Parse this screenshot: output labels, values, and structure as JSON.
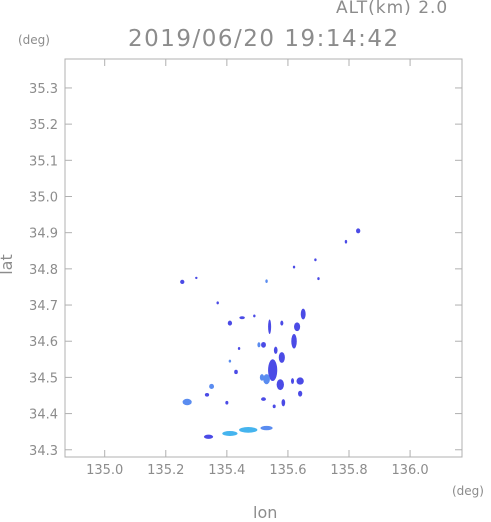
{
  "header": {
    "altitude_label": "ALT(km) 2.0",
    "datetime": "2019/06/20 19:14:42"
  },
  "chart_data": {
    "type": "heatmap",
    "title": "2019/06/20 19:14:42",
    "subtitle": "ALT(km) 2.0",
    "xlabel": "lon",
    "ylabel": "lat",
    "x_unit": "(deg)",
    "y_unit": "(deg)",
    "xlim": [
      134.87,
      136.17
    ],
    "ylim": [
      34.28,
      35.38
    ],
    "x_ticks": [
      135.0,
      135.2,
      135.4,
      135.6,
      135.8,
      136.0
    ],
    "x_tick_labels": [
      "135.0",
      "135.2",
      "135.4",
      "135.6",
      "135.8",
      "136.0"
    ],
    "y_ticks": [
      34.3,
      34.4,
      34.5,
      34.6,
      34.7,
      34.8,
      34.9,
      35.0,
      35.1,
      35.2,
      35.3
    ],
    "y_tick_labels": [
      "34.3",
      "34.4",
      "34.5",
      "34.6",
      "34.7",
      "34.8",
      "34.9",
      "35.0",
      "35.1",
      "35.2",
      "35.3"
    ],
    "grid": false,
    "colors": {
      "strong": "#4b4be6",
      "medium": "#5a8cf0",
      "light": "#45b4ee"
    },
    "echoes": [
      {
        "lon": 135.254,
        "lat": 34.764,
        "w": 0.014,
        "h": 0.012,
        "level": "strong"
      },
      {
        "lon": 135.3,
        "lat": 34.775,
        "w": 0.008,
        "h": 0.006,
        "level": "strong"
      },
      {
        "lon": 135.37,
        "lat": 34.706,
        "w": 0.008,
        "h": 0.008,
        "level": "strong"
      },
      {
        "lon": 135.53,
        "lat": 34.766,
        "w": 0.008,
        "h": 0.01,
        "level": "medium"
      },
      {
        "lon": 135.62,
        "lat": 34.805,
        "w": 0.006,
        "h": 0.008,
        "level": "strong"
      },
      {
        "lon": 135.69,
        "lat": 34.825,
        "w": 0.005,
        "h": 0.008,
        "level": "strong"
      },
      {
        "lon": 135.7,
        "lat": 34.773,
        "w": 0.005,
        "h": 0.008,
        "level": "strong"
      },
      {
        "lon": 135.79,
        "lat": 34.875,
        "w": 0.008,
        "h": 0.01,
        "level": "strong"
      },
      {
        "lon": 135.83,
        "lat": 34.905,
        "w": 0.014,
        "h": 0.014,
        "level": "strong"
      },
      {
        "lon": 135.45,
        "lat": 34.665,
        "w": 0.018,
        "h": 0.008,
        "level": "strong"
      },
      {
        "lon": 135.41,
        "lat": 34.65,
        "w": 0.014,
        "h": 0.014,
        "level": "strong"
      },
      {
        "lon": 135.49,
        "lat": 34.67,
        "w": 0.008,
        "h": 0.008,
        "level": "strong"
      },
      {
        "lon": 135.54,
        "lat": 34.64,
        "w": 0.01,
        "h": 0.04,
        "level": "strong"
      },
      {
        "lon": 135.58,
        "lat": 34.65,
        "w": 0.01,
        "h": 0.014,
        "level": "strong"
      },
      {
        "lon": 135.65,
        "lat": 34.675,
        "w": 0.016,
        "h": 0.03,
        "level": "strong"
      },
      {
        "lon": 135.63,
        "lat": 34.64,
        "w": 0.02,
        "h": 0.024,
        "level": "strong"
      },
      {
        "lon": 135.62,
        "lat": 34.6,
        "w": 0.018,
        "h": 0.04,
        "level": "strong"
      },
      {
        "lon": 135.52,
        "lat": 34.59,
        "w": 0.016,
        "h": 0.016,
        "level": "strong"
      },
      {
        "lon": 135.56,
        "lat": 34.575,
        "w": 0.012,
        "h": 0.02,
        "level": "strong"
      },
      {
        "lon": 135.58,
        "lat": 34.555,
        "w": 0.02,
        "h": 0.03,
        "level": "strong"
      },
      {
        "lon": 135.55,
        "lat": 34.52,
        "w": 0.03,
        "h": 0.06,
        "level": "strong"
      },
      {
        "lon": 135.53,
        "lat": 34.495,
        "w": 0.022,
        "h": 0.028,
        "level": "medium"
      },
      {
        "lon": 135.515,
        "lat": 34.5,
        "w": 0.014,
        "h": 0.018,
        "level": "medium"
      },
      {
        "lon": 135.575,
        "lat": 34.48,
        "w": 0.024,
        "h": 0.03,
        "level": "strong"
      },
      {
        "lon": 135.64,
        "lat": 34.49,
        "w": 0.024,
        "h": 0.02,
        "level": "strong"
      },
      {
        "lon": 135.615,
        "lat": 34.49,
        "w": 0.01,
        "h": 0.016,
        "level": "strong"
      },
      {
        "lon": 135.64,
        "lat": 34.455,
        "w": 0.014,
        "h": 0.016,
        "level": "strong"
      },
      {
        "lon": 135.585,
        "lat": 34.43,
        "w": 0.012,
        "h": 0.02,
        "level": "strong"
      },
      {
        "lon": 135.52,
        "lat": 34.44,
        "w": 0.016,
        "h": 0.01,
        "level": "strong"
      },
      {
        "lon": 135.555,
        "lat": 34.42,
        "w": 0.01,
        "h": 0.01,
        "level": "strong"
      },
      {
        "lon": 135.505,
        "lat": 34.59,
        "w": 0.01,
        "h": 0.014,
        "level": "medium"
      },
      {
        "lon": 135.44,
        "lat": 34.58,
        "w": 0.008,
        "h": 0.008,
        "level": "strong"
      },
      {
        "lon": 135.43,
        "lat": 34.515,
        "w": 0.012,
        "h": 0.012,
        "level": "strong"
      },
      {
        "lon": 135.41,
        "lat": 34.545,
        "w": 0.008,
        "h": 0.008,
        "level": "medium"
      },
      {
        "lon": 135.35,
        "lat": 34.475,
        "w": 0.016,
        "h": 0.014,
        "level": "medium"
      },
      {
        "lon": 135.335,
        "lat": 34.452,
        "w": 0.014,
        "h": 0.01,
        "level": "strong"
      },
      {
        "lon": 135.27,
        "lat": 34.432,
        "w": 0.03,
        "h": 0.018,
        "level": "medium"
      },
      {
        "lon": 135.4,
        "lat": 34.43,
        "w": 0.01,
        "h": 0.01,
        "level": "strong"
      },
      {
        "lon": 135.34,
        "lat": 34.336,
        "w": 0.03,
        "h": 0.012,
        "level": "strong"
      },
      {
        "lon": 135.41,
        "lat": 34.345,
        "w": 0.05,
        "h": 0.014,
        "level": "light"
      },
      {
        "lon": 135.47,
        "lat": 34.355,
        "w": 0.06,
        "h": 0.016,
        "level": "light"
      },
      {
        "lon": 135.53,
        "lat": 34.36,
        "w": 0.04,
        "h": 0.012,
        "level": "medium"
      }
    ]
  }
}
